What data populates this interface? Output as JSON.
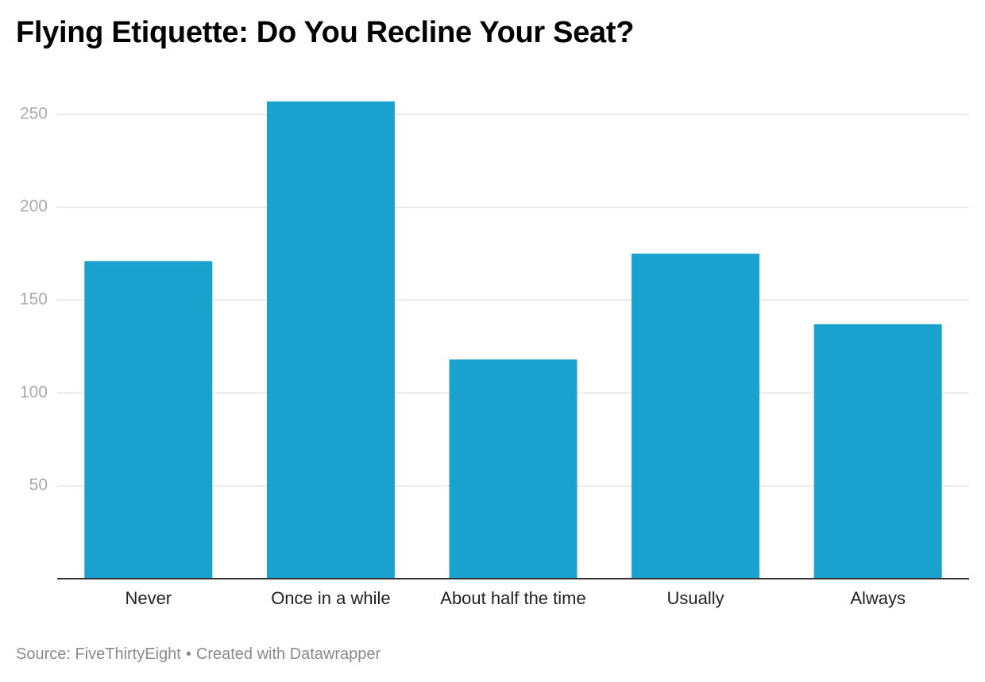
{
  "chart_data": {
    "type": "bar",
    "title": "Flying Etiquette: Do You Recline Your Seat?",
    "categories": [
      "Never",
      "Once in a while",
      "About half the time",
      "Usually",
      "Always"
    ],
    "values": [
      171,
      257,
      118,
      175,
      137
    ],
    "xlabel": "",
    "ylabel": "",
    "ylim": [
      0,
      265
    ],
    "yticks": [
      50,
      100,
      150,
      200,
      250
    ],
    "grid": true,
    "legend": "none",
    "bar_color": "#1aa1ce",
    "grid_color": "#e3e3e3",
    "axis_color": "#333333",
    "tick_label_color": "#aaaaaa"
  },
  "footer": {
    "source": "Source: FiveThirtyEight",
    "separator": "•",
    "credit": "Created with Datawrapper"
  }
}
